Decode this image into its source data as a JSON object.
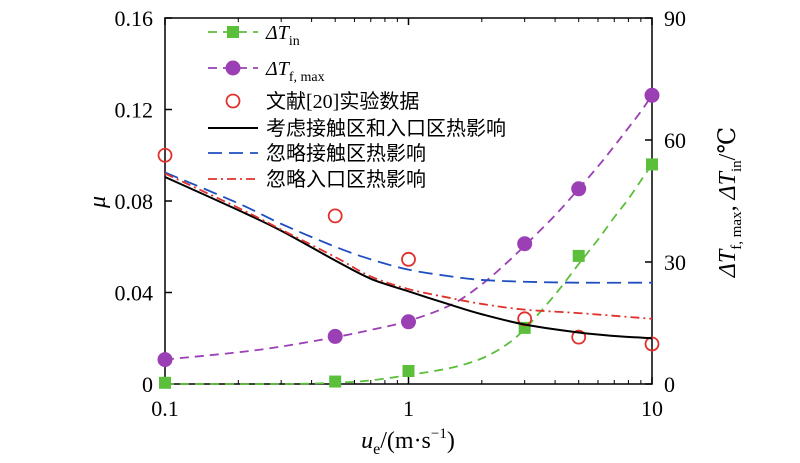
{
  "chart_data": {
    "type": "line",
    "x_scale": "log",
    "xlim": [
      0.1,
      10
    ],
    "ylim_left": [
      0,
      0.16
    ],
    "ylim_right": [
      0,
      90
    ],
    "x_ticks": [
      "0.1",
      "1",
      "10"
    ],
    "y_left_ticks": [
      "0",
      "0.04",
      "0.08",
      "0.12",
      "0.16"
    ],
    "y_right_ticks": [
      "0",
      "30",
      "60",
      "90"
    ],
    "xlabel": {
      "main": "u",
      "sub": "e",
      "unit": "/(m·s",
      "sup": "−1",
      "close": ")"
    },
    "ylabel_left": "μ",
    "ylabel_right": {
      "d1": "ΔT",
      "s1": "f, max",
      "sep": ", ",
      "d2": "ΔT",
      "s2": "in",
      "unit": "/℃"
    },
    "grid": false,
    "legend_position": "top-left",
    "series": [
      {
        "legend": {
          "main": "ΔT",
          "sub": "in"
        },
        "axis": "right",
        "style": "dashed-square",
        "color": "#5bbf3c",
        "points": [
          [
            0.1,
            0.3
          ],
          [
            0.5,
            0.6
          ],
          [
            1,
            3.2
          ],
          [
            3,
            13.8
          ],
          [
            5,
            31.5
          ],
          [
            10,
            54
          ]
        ],
        "curve": [
          [
            0.1,
            0
          ],
          [
            0.3,
            0
          ],
          [
            0.5,
            0.3
          ],
          [
            0.7,
            0.9
          ],
          [
            1,
            2.2
          ],
          [
            1.5,
            4
          ],
          [
            2,
            6.3
          ],
          [
            2.5,
            9.5
          ],
          [
            3,
            13.5
          ],
          [
            4,
            22
          ],
          [
            5,
            29.5
          ],
          [
            6,
            35.5
          ],
          [
            7,
            41
          ],
          [
            8,
            45.5
          ],
          [
            9,
            50
          ],
          [
            10,
            54
          ]
        ]
      },
      {
        "legend": {
          "main": "ΔT",
          "sub": "f, max"
        },
        "axis": "right",
        "style": "dashed-circle",
        "color": "#9b3fb5",
        "points": [
          [
            0.1,
            6
          ],
          [
            0.5,
            11.7
          ],
          [
            1,
            15.3
          ],
          [
            3,
            34.5
          ],
          [
            5,
            48
          ],
          [
            10,
            71
          ]
        ],
        "curve": [
          [
            0.1,
            6
          ],
          [
            0.2,
            7.8
          ],
          [
            0.3,
            9.2
          ],
          [
            0.5,
            11.5
          ],
          [
            0.7,
            13.3
          ],
          [
            1,
            15.5
          ],
          [
            1.5,
            19.5
          ],
          [
            2,
            24.5
          ],
          [
            2.5,
            29.5
          ],
          [
            3,
            34
          ],
          [
            4,
            41.5
          ],
          [
            5,
            48
          ],
          [
            6,
            53.5
          ],
          [
            7,
            58.5
          ],
          [
            8,
            63
          ],
          [
            9,
            67
          ],
          [
            10,
            71
          ]
        ]
      },
      {
        "legend": {
          "text": "文献[20]实验数据"
        },
        "axis": "left",
        "style": "open-circle",
        "color": "#e0312d",
        "points": [
          [
            0.1,
            0.1
          ],
          [
            0.5,
            0.0735
          ],
          [
            1,
            0.0545
          ],
          [
            3,
            0.0285
          ],
          [
            5,
            0.0205
          ],
          [
            10,
            0.0175
          ]
        ]
      },
      {
        "legend": {
          "text": "考虑接触区和入口区热影响"
        },
        "axis": "left",
        "style": "solid",
        "color": "#000000",
        "curve": [
          [
            0.1,
            0.0905
          ],
          [
            0.2,
            0.076
          ],
          [
            0.3,
            0.067
          ],
          [
            0.5,
            0.054
          ],
          [
            0.7,
            0.046
          ],
          [
            1,
            0.0405
          ],
          [
            1.5,
            0.0345
          ],
          [
            2,
            0.0305
          ],
          [
            3,
            0.026
          ],
          [
            5,
            0.0225
          ],
          [
            7,
            0.021
          ],
          [
            10,
            0.02
          ]
        ]
      },
      {
        "legend": {
          "text": "忽略接触区热影响"
        },
        "axis": "left",
        "style": "long-dash",
        "color": "#1f4fbf",
        "curve": [
          [
            0.1,
            0.0925
          ],
          [
            0.2,
            0.079
          ],
          [
            0.3,
            0.07
          ],
          [
            0.5,
            0.06
          ],
          [
            0.7,
            0.0545
          ],
          [
            1,
            0.05
          ],
          [
            1.5,
            0.047
          ],
          [
            2,
            0.0455
          ],
          [
            3,
            0.0447
          ],
          [
            5,
            0.0443
          ],
          [
            10,
            0.0443
          ]
        ]
      },
      {
        "legend": {
          "text": "忽略入口区热影响"
        },
        "axis": "left",
        "style": "dash-dot",
        "color": "#e0312d",
        "curve": [
          [
            0.1,
            0.092
          ],
          [
            0.2,
            0.077
          ],
          [
            0.3,
            0.0675
          ],
          [
            0.5,
            0.0555
          ],
          [
            0.7,
            0.047
          ],
          [
            1,
            0.0415
          ],
          [
            1.5,
            0.0375
          ],
          [
            2,
            0.035
          ],
          [
            3,
            0.0325
          ],
          [
            5,
            0.031
          ],
          [
            10,
            0.0285
          ]
        ]
      }
    ]
  }
}
